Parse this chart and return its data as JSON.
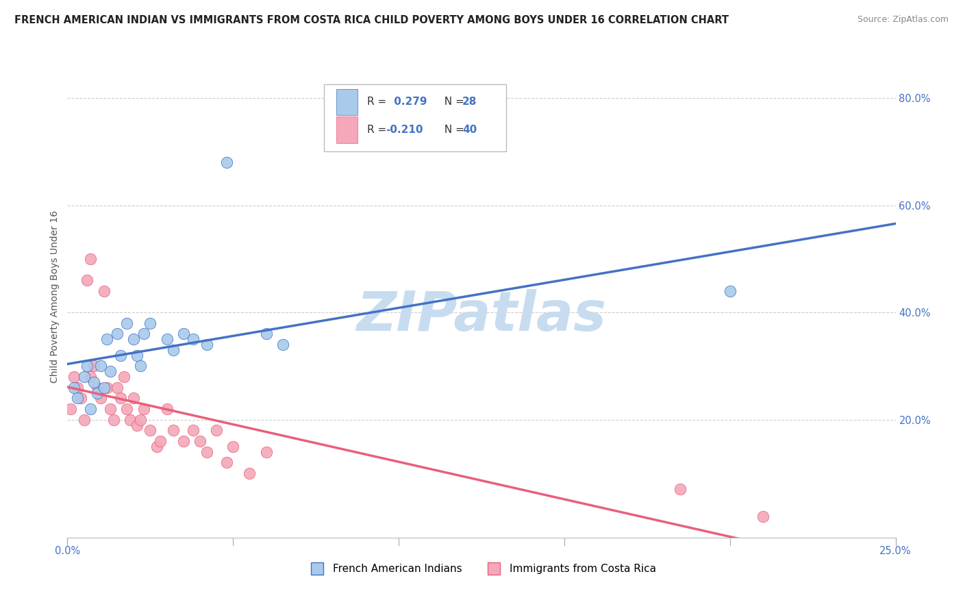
{
  "title": "FRENCH AMERICAN INDIAN VS IMMIGRANTS FROM COSTA RICA CHILD POVERTY AMONG BOYS UNDER 16 CORRELATION CHART",
  "source": "Source: ZipAtlas.com",
  "ylabel": "Child Poverty Among Boys Under 16",
  "xlim": [
    0.0,
    0.25
  ],
  "ylim": [
    -0.02,
    0.88
  ],
  "yticks_right": [
    0.2,
    0.4,
    0.6,
    0.8
  ],
  "watermark": "ZIPatlas",
  "legend_r1": "R =  0.279",
  "legend_n1": "N = 28",
  "legend_r2": "R = -0.210",
  "legend_n2": "N = 40",
  "legend_label1": "French American Indians",
  "legend_label2": "Immigrants from Costa Rica",
  "blue_color": "#A8CAEB",
  "pink_color": "#F4A8BA",
  "blue_line_color": "#4472C4",
  "pink_line_color": "#E8607A",
  "blue_scatter_x": [
    0.002,
    0.003,
    0.005,
    0.006,
    0.007,
    0.008,
    0.009,
    0.01,
    0.011,
    0.012,
    0.013,
    0.015,
    0.016,
    0.018,
    0.02,
    0.021,
    0.022,
    0.023,
    0.025,
    0.03,
    0.032,
    0.035,
    0.038,
    0.042,
    0.048,
    0.06,
    0.065,
    0.2
  ],
  "blue_scatter_y": [
    0.26,
    0.24,
    0.28,
    0.3,
    0.22,
    0.27,
    0.25,
    0.3,
    0.26,
    0.35,
    0.29,
    0.36,
    0.32,
    0.38,
    0.35,
    0.32,
    0.3,
    0.36,
    0.38,
    0.35,
    0.33,
    0.36,
    0.35,
    0.34,
    0.68,
    0.36,
    0.34,
    0.44
  ],
  "pink_scatter_x": [
    0.001,
    0.002,
    0.003,
    0.004,
    0.005,
    0.006,
    0.007,
    0.007,
    0.008,
    0.009,
    0.01,
    0.011,
    0.012,
    0.013,
    0.014,
    0.015,
    0.016,
    0.017,
    0.018,
    0.019,
    0.02,
    0.021,
    0.022,
    0.023,
    0.025,
    0.027,
    0.028,
    0.03,
    0.032,
    0.035,
    0.038,
    0.04,
    0.042,
    0.045,
    0.048,
    0.05,
    0.055,
    0.06,
    0.185,
    0.21
  ],
  "pink_scatter_y": [
    0.22,
    0.28,
    0.26,
    0.24,
    0.2,
    0.46,
    0.5,
    0.28,
    0.3,
    0.26,
    0.24,
    0.44,
    0.26,
    0.22,
    0.2,
    0.26,
    0.24,
    0.28,
    0.22,
    0.2,
    0.24,
    0.19,
    0.2,
    0.22,
    0.18,
    0.15,
    0.16,
    0.22,
    0.18,
    0.16,
    0.18,
    0.16,
    0.14,
    0.18,
    0.12,
    0.15,
    0.1,
    0.14,
    0.07,
    0.02
  ],
  "title_fontsize": 10.5,
  "source_fontsize": 9,
  "axis_label_fontsize": 10,
  "tick_fontsize": 10.5,
  "background_color": "#FFFFFF",
  "grid_color": "#CCCCCC",
  "watermark_color": "#C8DCF0",
  "watermark_fontsize": 58
}
